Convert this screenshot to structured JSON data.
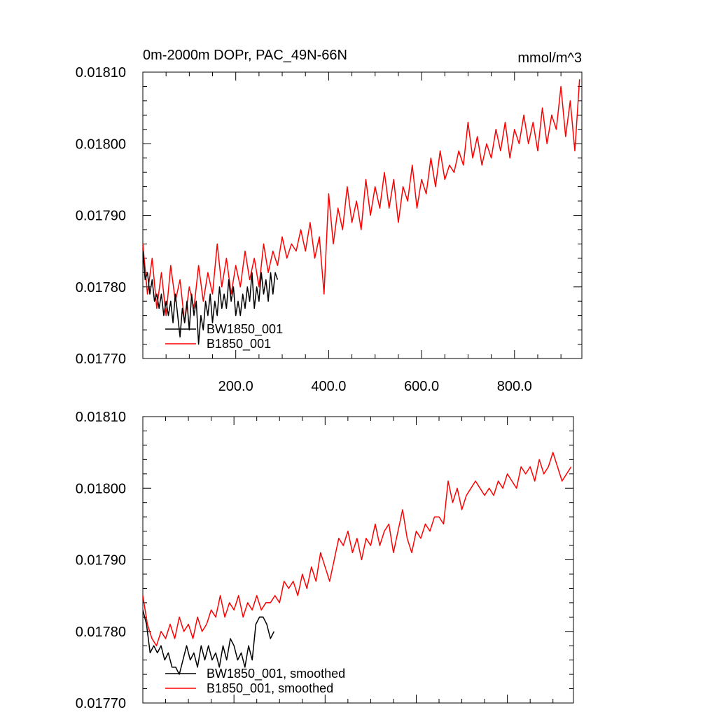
{
  "chart_data": [
    {
      "type": "line",
      "title": "0m-2000m DOPr, PAC_49N-66N",
      "units": "mmol/m^3",
      "xlabel": "",
      "ylabel": "",
      "xlim": [
        0,
        945
      ],
      "ylim": [
        0.0177,
        0.0181
      ],
      "xticks": [
        200,
        400,
        600,
        800
      ],
      "xtick_labels": [
        "200.0",
        "400.0",
        "600.0",
        "800.0"
      ],
      "yticks": [
        0.0177,
        0.0178,
        0.0179,
        0.018,
        0.0181
      ],
      "ytick_labels": [
        "0.01770",
        "0.01780",
        "0.01790",
        "0.01800",
        "0.01810"
      ],
      "grid": false,
      "legend_position": "bottom-left",
      "series": [
        {
          "name": "BW1850_001",
          "color": "#000000",
          "x": [
            0,
            5,
            10,
            15,
            20,
            25,
            30,
            35,
            40,
            45,
            50,
            55,
            60,
            65,
            70,
            75,
            80,
            85,
            90,
            95,
            100,
            105,
            110,
            115,
            120,
            125,
            130,
            135,
            140,
            145,
            150,
            155,
            160,
            165,
            170,
            175,
            180,
            185,
            190,
            195,
            200,
            205,
            210,
            215,
            220,
            225,
            230,
            235,
            240,
            245,
            250,
            255,
            260,
            265,
            270,
            275,
            280,
            285,
            290
          ],
          "values": [
            0.01785,
            0.01781,
            0.01782,
            0.01779,
            0.01781,
            0.01778,
            0.01779,
            0.01777,
            0.01779,
            0.01776,
            0.01778,
            0.01776,
            0.01778,
            0.01775,
            0.01779,
            0.01776,
            0.01773,
            0.01777,
            0.01775,
            0.01778,
            0.01774,
            0.01779,
            0.01776,
            0.01778,
            0.01772,
            0.01776,
            0.01774,
            0.01778,
            0.01776,
            0.01779,
            0.01775,
            0.01778,
            0.01776,
            0.0178,
            0.01777,
            0.01779,
            0.01777,
            0.01781,
            0.01778,
            0.0178,
            0.01776,
            0.01778,
            0.01776,
            0.01779,
            0.01777,
            0.0178,
            0.01778,
            0.01782,
            0.01777,
            0.0178,
            0.01778,
            0.01782,
            0.01779,
            0.01781,
            0.01778,
            0.01782,
            0.01779,
            0.01782,
            0.01781
          ]
        },
        {
          "name": "B1850_001",
          "color": "#ff0000",
          "x": [
            0,
            10,
            20,
            30,
            40,
            50,
            60,
            70,
            80,
            90,
            100,
            110,
            120,
            130,
            140,
            150,
            160,
            170,
            180,
            190,
            200,
            210,
            220,
            230,
            240,
            250,
            260,
            270,
            280,
            290,
            300,
            310,
            320,
            330,
            340,
            350,
            360,
            370,
            380,
            390,
            400,
            410,
            420,
            430,
            440,
            450,
            460,
            470,
            480,
            490,
            500,
            510,
            520,
            530,
            540,
            550,
            560,
            570,
            580,
            590,
            600,
            610,
            620,
            630,
            640,
            650,
            660,
            670,
            680,
            690,
            700,
            710,
            720,
            730,
            740,
            750,
            760,
            770,
            780,
            790,
            800,
            810,
            820,
            830,
            840,
            850,
            860,
            870,
            880,
            890,
            900,
            910,
            920,
            930,
            940
          ],
          "values": [
            0.01786,
            0.01779,
            0.01784,
            0.01777,
            0.01782,
            0.01776,
            0.01783,
            0.01778,
            0.01781,
            0.01775,
            0.0178,
            0.01777,
            0.01783,
            0.01778,
            0.01782,
            0.01779,
            0.01786,
            0.0178,
            0.01784,
            0.01779,
            0.01783,
            0.0178,
            0.01785,
            0.01781,
            0.01784,
            0.0178,
            0.01786,
            0.01782,
            0.01785,
            0.01783,
            0.01787,
            0.01784,
            0.01786,
            0.01785,
            0.01788,
            0.01785,
            0.01789,
            0.01784,
            0.01787,
            0.01779,
            0.01793,
            0.01786,
            0.01791,
            0.01788,
            0.01794,
            0.01789,
            0.01792,
            0.01788,
            0.01795,
            0.0179,
            0.01794,
            0.01791,
            0.01796,
            0.01791,
            0.01795,
            0.01789,
            0.01794,
            0.01792,
            0.01797,
            0.01791,
            0.01795,
            0.01793,
            0.01798,
            0.01794,
            0.01799,
            0.01795,
            0.01797,
            0.01796,
            0.01799,
            0.01797,
            0.01803,
            0.01798,
            0.01801,
            0.01797,
            0.018,
            0.01798,
            0.01802,
            0.01799,
            0.01803,
            0.01798,
            0.01802,
            0.018,
            0.01804,
            0.018,
            0.01803,
            0.01799,
            0.01805,
            0.018,
            0.01804,
            0.01802,
            0.01808,
            0.01801,
            0.01806,
            0.01799,
            0.01809
          ]
        }
      ]
    },
    {
      "type": "line",
      "title": "",
      "xlabel": "",
      "ylabel": "",
      "xlim": [
        0,
        945
      ],
      "ylim": [
        0.0177,
        0.0181
      ],
      "xticks": [
        200,
        400,
        600,
        800
      ],
      "yticks": [
        0.0177,
        0.0178,
        0.0179,
        0.018,
        0.0181
      ],
      "ytick_labels": [
        "0.01770",
        "0.01780",
        "0.01790",
        "0.01800",
        "0.01810"
      ],
      "grid": false,
      "legend_position": "bottom-left",
      "series": [
        {
          "name": "BW1850_001, smoothed",
          "color": "#000000",
          "x": [
            0,
            8,
            16,
            24,
            32,
            40,
            48,
            56,
            64,
            72,
            80,
            88,
            96,
            104,
            112,
            120,
            128,
            136,
            144,
            152,
            160,
            168,
            176,
            184,
            192,
            200,
            208,
            216,
            224,
            232,
            240,
            248,
            256,
            264,
            272,
            280,
            288
          ],
          "values": [
            0.01783,
            0.01781,
            0.01777,
            0.01778,
            0.01777,
            0.01778,
            0.01776,
            0.01777,
            0.01775,
            0.01775,
            0.01774,
            0.01776,
            0.01778,
            0.01776,
            0.01777,
            0.01775,
            0.01778,
            0.01776,
            0.01778,
            0.01776,
            0.01777,
            0.01775,
            0.01778,
            0.01776,
            0.01779,
            0.01778,
            0.01776,
            0.01777,
            0.01775,
            0.01778,
            0.01776,
            0.01781,
            0.01782,
            0.01782,
            0.01781,
            0.01779,
            0.0178
          ]
        },
        {
          "name": "B1850_001, smoothed",
          "color": "#ff0000",
          "x": [
            0,
            10,
            20,
            30,
            40,
            50,
            60,
            70,
            80,
            90,
            100,
            110,
            120,
            130,
            140,
            150,
            160,
            170,
            180,
            190,
            200,
            210,
            220,
            230,
            240,
            250,
            260,
            270,
            280,
            290,
            300,
            310,
            320,
            330,
            340,
            350,
            360,
            370,
            380,
            390,
            400,
            410,
            420,
            430,
            440,
            450,
            460,
            470,
            480,
            490,
            500,
            510,
            520,
            530,
            540,
            550,
            560,
            570,
            580,
            590,
            600,
            610,
            620,
            630,
            640,
            650,
            660,
            670,
            680,
            690,
            700,
            710,
            720,
            730,
            740,
            750,
            760,
            770,
            780,
            790,
            800,
            810,
            820,
            830,
            840,
            850,
            860,
            870,
            880,
            890,
            900,
            910,
            920,
            930,
            940
          ],
          "values": [
            0.01785,
            0.01781,
            0.01779,
            0.01778,
            0.0178,
            0.01779,
            0.01781,
            0.01779,
            0.01782,
            0.0178,
            0.01781,
            0.01779,
            0.01782,
            0.0178,
            0.01781,
            0.01783,
            0.01782,
            0.01785,
            0.01782,
            0.01784,
            0.01783,
            0.01785,
            0.01782,
            0.01784,
            0.01783,
            0.01785,
            0.01783,
            0.01784,
            0.01784,
            0.01785,
            0.01784,
            0.01787,
            0.01786,
            0.01787,
            0.01785,
            0.01788,
            0.01786,
            0.01789,
            0.01787,
            0.01791,
            0.01789,
            0.01787,
            0.0179,
            0.01793,
            0.01792,
            0.01794,
            0.01791,
            0.01793,
            0.0179,
            0.01793,
            0.01792,
            0.01795,
            0.01792,
            0.01794,
            0.01795,
            0.01791,
            0.01794,
            0.01797,
            0.01793,
            0.01791,
            0.01794,
            0.01793,
            0.01795,
            0.01794,
            0.01796,
            0.01796,
            0.01795,
            0.01801,
            0.01798,
            0.018,
            0.01797,
            0.01799,
            0.018,
            0.01801,
            0.018,
            0.01799,
            0.018,
            0.01799,
            0.01801,
            0.018,
            0.01802,
            0.01801,
            0.018,
            0.01803,
            0.01802,
            0.01803,
            0.01801,
            0.01804,
            0.01802,
            0.01803,
            0.01805,
            0.01803,
            0.01801,
            0.01802,
            0.01803
          ]
        }
      ]
    }
  ]
}
